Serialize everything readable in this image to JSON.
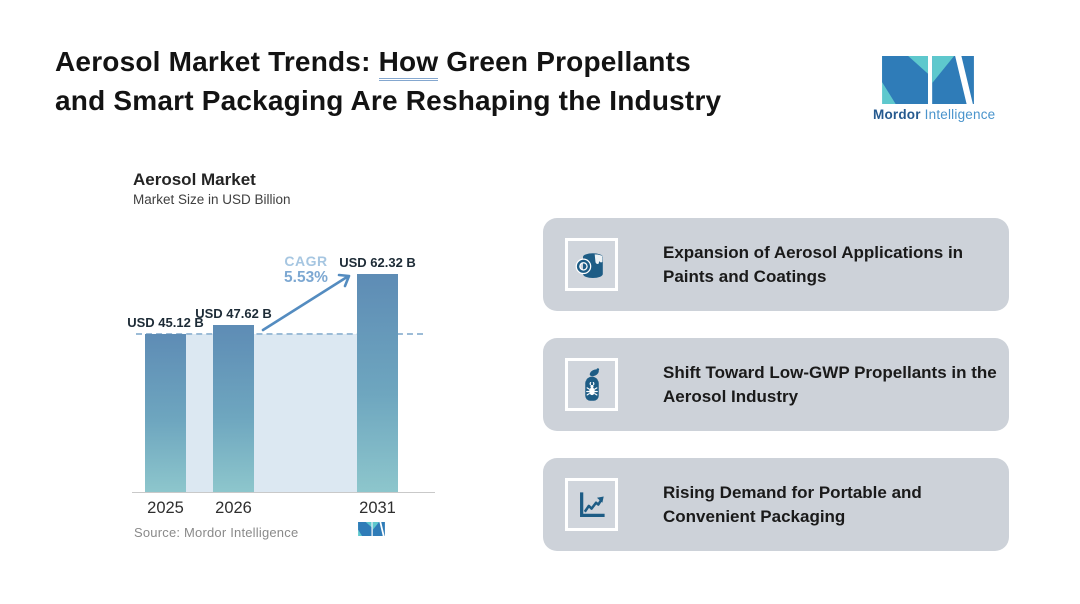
{
  "header": {
    "title_pre": "Aerosol Market Trends: ",
    "title_underlined": "How",
    "title_post": " Green Propellants",
    "title_line2": "and Smart Packaging Are Reshaping the Industry",
    "logo": {
      "brand_bold": "Mordor",
      "brand_light": "Intelligence"
    }
  },
  "chart": {
    "title": "Aerosol Market",
    "subtitle": "Market Size in USD Billion",
    "cagr_label": "CAGR",
    "cagr_value": "5.53%",
    "source": "Source: Mordor Intelligence"
  },
  "chart_data": {
    "type": "bar",
    "title": "Aerosol Market",
    "subtitle": "Market Size in USD Billion",
    "ylabel": "Market Size in USD Billion",
    "categories": [
      "2025",
      "2026",
      "2031"
    ],
    "values": [
      45.12,
      47.62,
      62.32
    ],
    "value_labels": [
      "USD 45.12 B",
      "USD 47.62 B",
      "USD 62.32 B"
    ],
    "reference_dashed_line_value": 45.12,
    "cagr": "5.53%",
    "ylim": [
      0,
      70
    ],
    "grid": false,
    "bar_gradient_top": "#5e8cb5",
    "bar_gradient_bottom": "#8dc6cc",
    "plot_fill_color": "#dce8f2",
    "arrow_color": "#548cc0"
  },
  "cards": [
    {
      "icon": "paint-bucket-icon",
      "title": "Expansion of Aerosol Applications in Paints and Coatings"
    },
    {
      "icon": "spray-can-icon",
      "title": "Shift Toward Low-GWP Propellants in the Aerosol Industry"
    },
    {
      "icon": "trend-chart-icon",
      "title": "Rising Demand for Portable and Convenient Packaging"
    }
  ],
  "colors": {
    "brand_blue": "#2f7cb8",
    "brand_teal": "#5ec8cd",
    "card_background": "#cdd2d9",
    "icon_blue": "#1d5c85",
    "cagr_light_blue": "#a6c6e1",
    "cagr_blue": "#7da8d2"
  }
}
